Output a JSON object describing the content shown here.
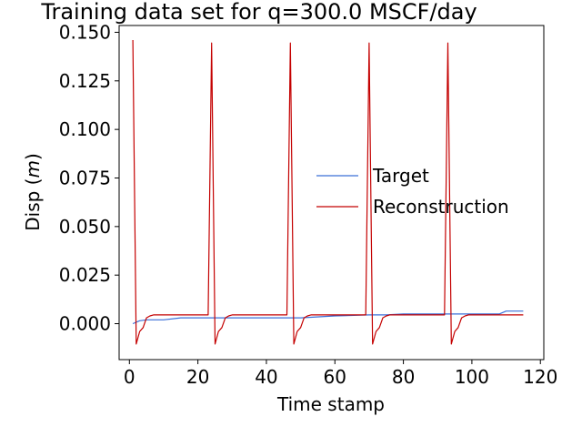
{
  "chart_data": {
    "type": "line",
    "title": "Training data set for q=300.0 MSCF/day",
    "xlabel": "Time stamp",
    "ylabel_prefix": "Disp (",
    "ylabel_unit": "m",
    "ylabel_suffix": ")",
    "xlim": [
      -3,
      121
    ],
    "ylim": [
      -0.0185,
      0.1535
    ],
    "xticks": [
      0,
      20,
      40,
      60,
      80,
      100,
      120
    ],
    "xtick_labels": [
      "0",
      "20",
      "40",
      "60",
      "80",
      "100",
      "120"
    ],
    "yticks": [
      0.0,
      0.025,
      0.05,
      0.075,
      0.1,
      0.125,
      0.15
    ],
    "ytick_labels": [
      "0.000",
      "0.025",
      "0.050",
      "0.075",
      "0.100",
      "0.125",
      "0.150"
    ],
    "grid": false,
    "legend_position": "center-right",
    "series": [
      {
        "name": "Target",
        "color": "#3a6fd8",
        "x": [
          1,
          3,
          5,
          10,
          15,
          20,
          25,
          30,
          40,
          50,
          60,
          70,
          75,
          80,
          85,
          90,
          95,
          100,
          105,
          108,
          110,
          115
        ],
        "y": [
          0.0,
          0.0015,
          0.002,
          0.002,
          0.003,
          0.003,
          0.003,
          0.003,
          0.003,
          0.003,
          0.004,
          0.0045,
          0.0045,
          0.005,
          0.005,
          0.005,
          0.005,
          0.005,
          0.005,
          0.005,
          0.0065,
          0.0065
        ]
      },
      {
        "name": "Reconstruction",
        "color": "#c40000",
        "x": [
          1,
          2,
          3,
          4,
          5,
          6,
          7,
          8,
          10,
          15,
          20,
          23,
          24,
          25,
          26,
          27,
          28,
          29,
          30,
          31,
          35,
          40,
          46,
          47,
          48,
          49,
          50,
          51,
          52,
          53,
          54,
          58,
          63,
          69,
          70,
          71,
          72,
          73,
          74,
          75,
          76,
          77,
          80,
          85,
          92,
          93,
          94,
          95,
          96,
          97,
          98,
          99,
          100,
          105,
          110,
          115
        ],
        "y": [
          0.146,
          -0.0105,
          -0.004,
          -0.002,
          0.003,
          0.004,
          0.0045,
          0.0045,
          0.0045,
          0.0045,
          0.0045,
          0.0045,
          0.1445,
          -0.0105,
          -0.004,
          -0.002,
          0.003,
          0.004,
          0.0045,
          0.0045,
          0.0045,
          0.0045,
          0.0045,
          0.1445,
          -0.0105,
          -0.004,
          -0.002,
          0.003,
          0.004,
          0.0045,
          0.0045,
          0.0045,
          0.0045,
          0.0045,
          0.1445,
          -0.0105,
          -0.004,
          -0.002,
          0.003,
          0.004,
          0.0045,
          0.0045,
          0.0045,
          0.0045,
          0.0045,
          0.1445,
          -0.0105,
          -0.004,
          -0.002,
          0.003,
          0.004,
          0.0045,
          0.0045,
          0.0045,
          0.0045,
          0.0045
        ]
      }
    ]
  }
}
